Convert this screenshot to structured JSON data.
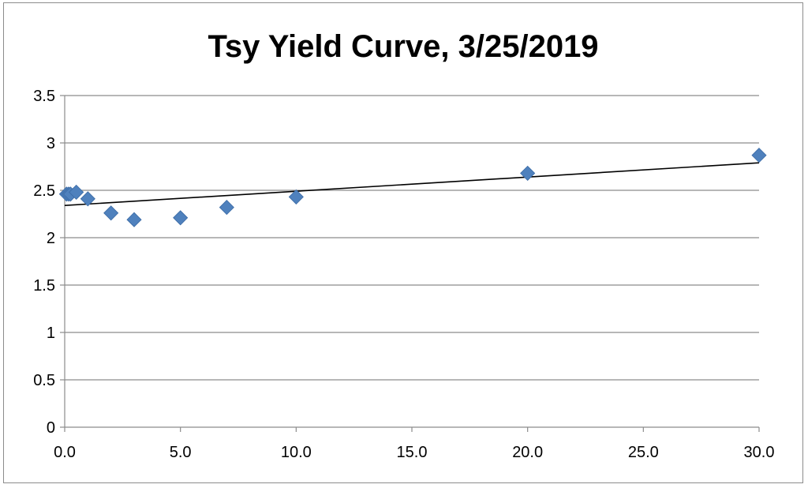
{
  "chart_data": {
    "type": "scatter",
    "title": "Tsy Yield Curve, 3/25/2019",
    "xlabel": "",
    "ylabel": "",
    "xlim": [
      0,
      30
    ],
    "ylim": [
      0,
      3.5
    ],
    "x_ticks": [
      "0.0",
      "5.0",
      "10.0",
      "15.0",
      "20.0",
      "25.0",
      "30.0"
    ],
    "y_ticks": [
      "0",
      "0.5",
      "1",
      "1.5",
      "2",
      "2.5",
      "3",
      "3.5"
    ],
    "x_tick_values": [
      0,
      5,
      10,
      15,
      20,
      25,
      30
    ],
    "y_tick_values": [
      0,
      0.5,
      1,
      1.5,
      2,
      2.5,
      3,
      3.5
    ],
    "grid": "horizontal",
    "legend": "none",
    "series": [
      {
        "marker": "diamond",
        "color": "#4F81BD",
        "points": [
          {
            "x": 0.08,
            "y": 2.46
          },
          {
            "x": 0.17,
            "y": 2.46
          },
          {
            "x": 0.25,
            "y": 2.46
          },
          {
            "x": 0.5,
            "y": 2.48
          },
          {
            "x": 1,
            "y": 2.41
          },
          {
            "x": 2,
            "y": 2.26
          },
          {
            "x": 3,
            "y": 2.19
          },
          {
            "x": 5,
            "y": 2.21
          },
          {
            "x": 7,
            "y": 2.32
          },
          {
            "x": 10,
            "y": 2.43
          },
          {
            "x": 20,
            "y": 2.68
          },
          {
            "x": 30,
            "y": 2.87
          }
        ]
      }
    ],
    "trendline": {
      "type": "linear",
      "color": "#000000",
      "x": [
        0,
        30
      ],
      "y": [
        2.34,
        2.79
      ]
    }
  }
}
